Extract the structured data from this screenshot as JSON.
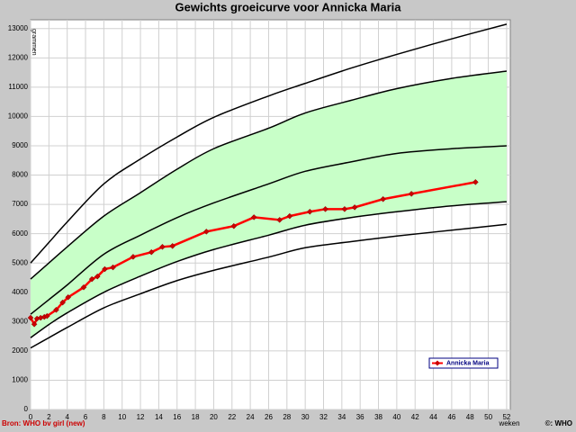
{
  "chart_data": {
    "type": "line",
    "title": "Gewichts groeicurve voor Annicka Maria",
    "y_label": "grammen",
    "x_label": "weken",
    "source": "Bron: WHO bv girl (new)",
    "credit": "©: WHO",
    "xlim": [
      0,
      52.4
    ],
    "ylim": [
      0,
      13300
    ],
    "xticks": [
      0,
      2,
      4,
      6,
      8,
      10,
      12,
      14,
      16,
      18,
      20,
      22,
      24,
      26,
      28,
      30,
      32,
      34,
      36,
      38,
      40,
      42,
      44,
      46,
      48,
      50,
      52
    ],
    "yticks": [
      0,
      1000,
      2000,
      3000,
      4000,
      5000,
      6000,
      7000,
      8000,
      9000,
      10000,
      11000,
      12000,
      13000
    ],
    "grid": true,
    "legend": "lower right",
    "reference_x": [
      0,
      2,
      4,
      8,
      12,
      16,
      20,
      26,
      30,
      35,
      40,
      46,
      52
    ],
    "reference_curves": [
      {
        "color": "#000000",
        "values": [
          5000,
          5700,
          6400,
          7700,
          8550,
          9300,
          9970,
          10700,
          11130,
          11650,
          12120,
          12650,
          13150
        ]
      },
      {
        "color": "#000000",
        "values": [
          4450,
          5000,
          5550,
          6600,
          7400,
          8200,
          8900,
          9600,
          10120,
          10550,
          10950,
          11300,
          11550
        ]
      },
      {
        "color": "#000000",
        "values": [
          3250,
          3750,
          4250,
          5300,
          5950,
          6550,
          7050,
          7700,
          8130,
          8450,
          8740,
          8900,
          9000
        ]
      },
      {
        "color": "#000000",
        "values": [
          2450,
          2900,
          3300,
          4000,
          4550,
          5050,
          5460,
          5950,
          6290,
          6550,
          6750,
          6950,
          7090
        ]
      },
      {
        "color": "#000000",
        "values": [
          2100,
          2450,
          2800,
          3470,
          3950,
          4400,
          4750,
          5200,
          5520,
          5730,
          5920,
          6120,
          6320
        ]
      }
    ],
    "band": {
      "from": 1,
      "to": 3,
      "color": "#c8ffc8"
    },
    "series": [
      {
        "name": "Annicka Maria",
        "color": "#ff0000",
        "x": [
          0,
          0.4,
          0.7,
          1.1,
          1.5,
          1.8,
          2.8,
          3.5,
          4.1,
          5.8,
          6.7,
          7.3,
          8.1,
          9.0,
          11.2,
          13.2,
          14.4,
          15.5,
          19.2,
          22.2,
          24.4,
          27.2,
          28.3,
          30.5,
          32.2,
          34.3,
          35.4,
          38.5,
          41.6,
          48.6
        ],
        "values": [
          3130,
          2910,
          3100,
          3130,
          3160,
          3190,
          3400,
          3650,
          3830,
          4170,
          4450,
          4540,
          4790,
          4850,
          5210,
          5370,
          5550,
          5580,
          6070,
          6260,
          6560,
          6470,
          6600,
          6750,
          6840,
          6840,
          6900,
          7180,
          7360,
          7760
        ]
      }
    ]
  }
}
